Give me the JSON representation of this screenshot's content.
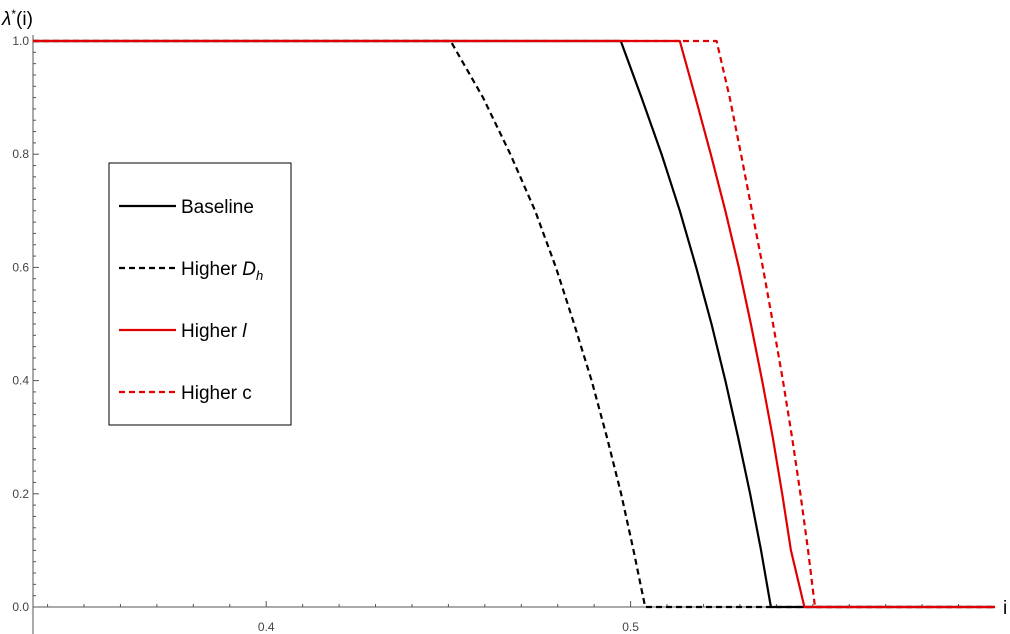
{
  "chart_data": {
    "type": "line",
    "xlabel": "i",
    "ylabel": "λ*(i)",
    "xlim": [
      0.336,
      0.6
    ],
    "ylim": [
      0.0,
      1.0
    ],
    "x_ticks": [
      0.4,
      0.5
    ],
    "x_tick_labels": [
      "0.4",
      "0.5"
    ],
    "y_ticks": [
      0.0,
      0.2,
      0.4,
      0.6,
      0.8,
      1.0
    ],
    "y_tick_labels": [
      "0.0",
      "0.2",
      "0.4",
      "0.6",
      "0.8",
      "1.0"
    ],
    "grid": false,
    "legend_position": "left",
    "series": [
      {
        "name": "Baseline",
        "color": "#000000",
        "dash": "solid",
        "points": [
          [
            0.336,
            1.0
          ],
          [
            0.4973,
            1.0
          ],
          [
            0.503,
            0.9
          ],
          [
            0.5085,
            0.8
          ],
          [
            0.5135,
            0.7
          ],
          [
            0.518,
            0.6
          ],
          [
            0.5222,
            0.5
          ],
          [
            0.526,
            0.4
          ],
          [
            0.5295,
            0.3
          ],
          [
            0.5328,
            0.2
          ],
          [
            0.5358,
            0.1
          ],
          [
            0.5385,
            0.0
          ],
          [
            0.6,
            0.0
          ]
        ]
      },
      {
        "name": "Higher D_h",
        "color": "#000000",
        "dash": "dashed",
        "points": [
          [
            0.336,
            1.0
          ],
          [
            0.4506,
            1.0
          ],
          [
            0.4595,
            0.9
          ],
          [
            0.467,
            0.8
          ],
          [
            0.4738,
            0.7
          ],
          [
            0.4795,
            0.6
          ],
          [
            0.4845,
            0.5
          ],
          [
            0.4893,
            0.4
          ],
          [
            0.4935,
            0.3
          ],
          [
            0.4974,
            0.2
          ],
          [
            0.5008,
            0.1
          ],
          [
            0.504,
            0.0
          ],
          [
            0.6,
            0.0
          ]
        ]
      },
      {
        "name": "Higher l",
        "color": "#e00000",
        "dash": "solid",
        "points": [
          [
            0.336,
            1.0
          ],
          [
            0.5135,
            1.0
          ],
          [
            0.5178,
            0.9
          ],
          [
            0.522,
            0.8
          ],
          [
            0.526,
            0.7
          ],
          [
            0.5297,
            0.6
          ],
          [
            0.533,
            0.5
          ],
          [
            0.5361,
            0.4
          ],
          [
            0.539,
            0.3
          ],
          [
            0.5416,
            0.2
          ],
          [
            0.544,
            0.1
          ],
          [
            0.5477,
            0.0
          ],
          [
            0.6,
            0.0
          ]
        ]
      },
      {
        "name": "Higher c",
        "color": "#e00000",
        "dash": "dashed",
        "points": [
          [
            0.336,
            1.0
          ],
          [
            0.5236,
            1.0
          ],
          [
            0.5272,
            0.9
          ],
          [
            0.5303,
            0.8
          ],
          [
            0.5333,
            0.7
          ],
          [
            0.5363,
            0.6
          ],
          [
            0.5391,
            0.5
          ],
          [
            0.5418,
            0.4
          ],
          [
            0.5443,
            0.3
          ],
          [
            0.5466,
            0.2
          ],
          [
            0.5487,
            0.1
          ],
          [
            0.5506,
            0.0
          ],
          [
            0.6,
            0.0
          ]
        ]
      }
    ],
    "legend_entries": [
      {
        "label": "Baseline",
        "italic": "",
        "sub": "",
        "color": "#000000",
        "dash": "solid"
      },
      {
        "label": "Higher ",
        "italic": "D",
        "sub": "h",
        "color": "#000000",
        "dash": "dashed"
      },
      {
        "label": "Higher ",
        "italic": "l",
        "sub": "",
        "color": "#e00000",
        "dash": "solid"
      },
      {
        "label": "Higher c",
        "italic": "",
        "sub": "",
        "color": "#e00000",
        "dash": "dashed"
      }
    ]
  }
}
